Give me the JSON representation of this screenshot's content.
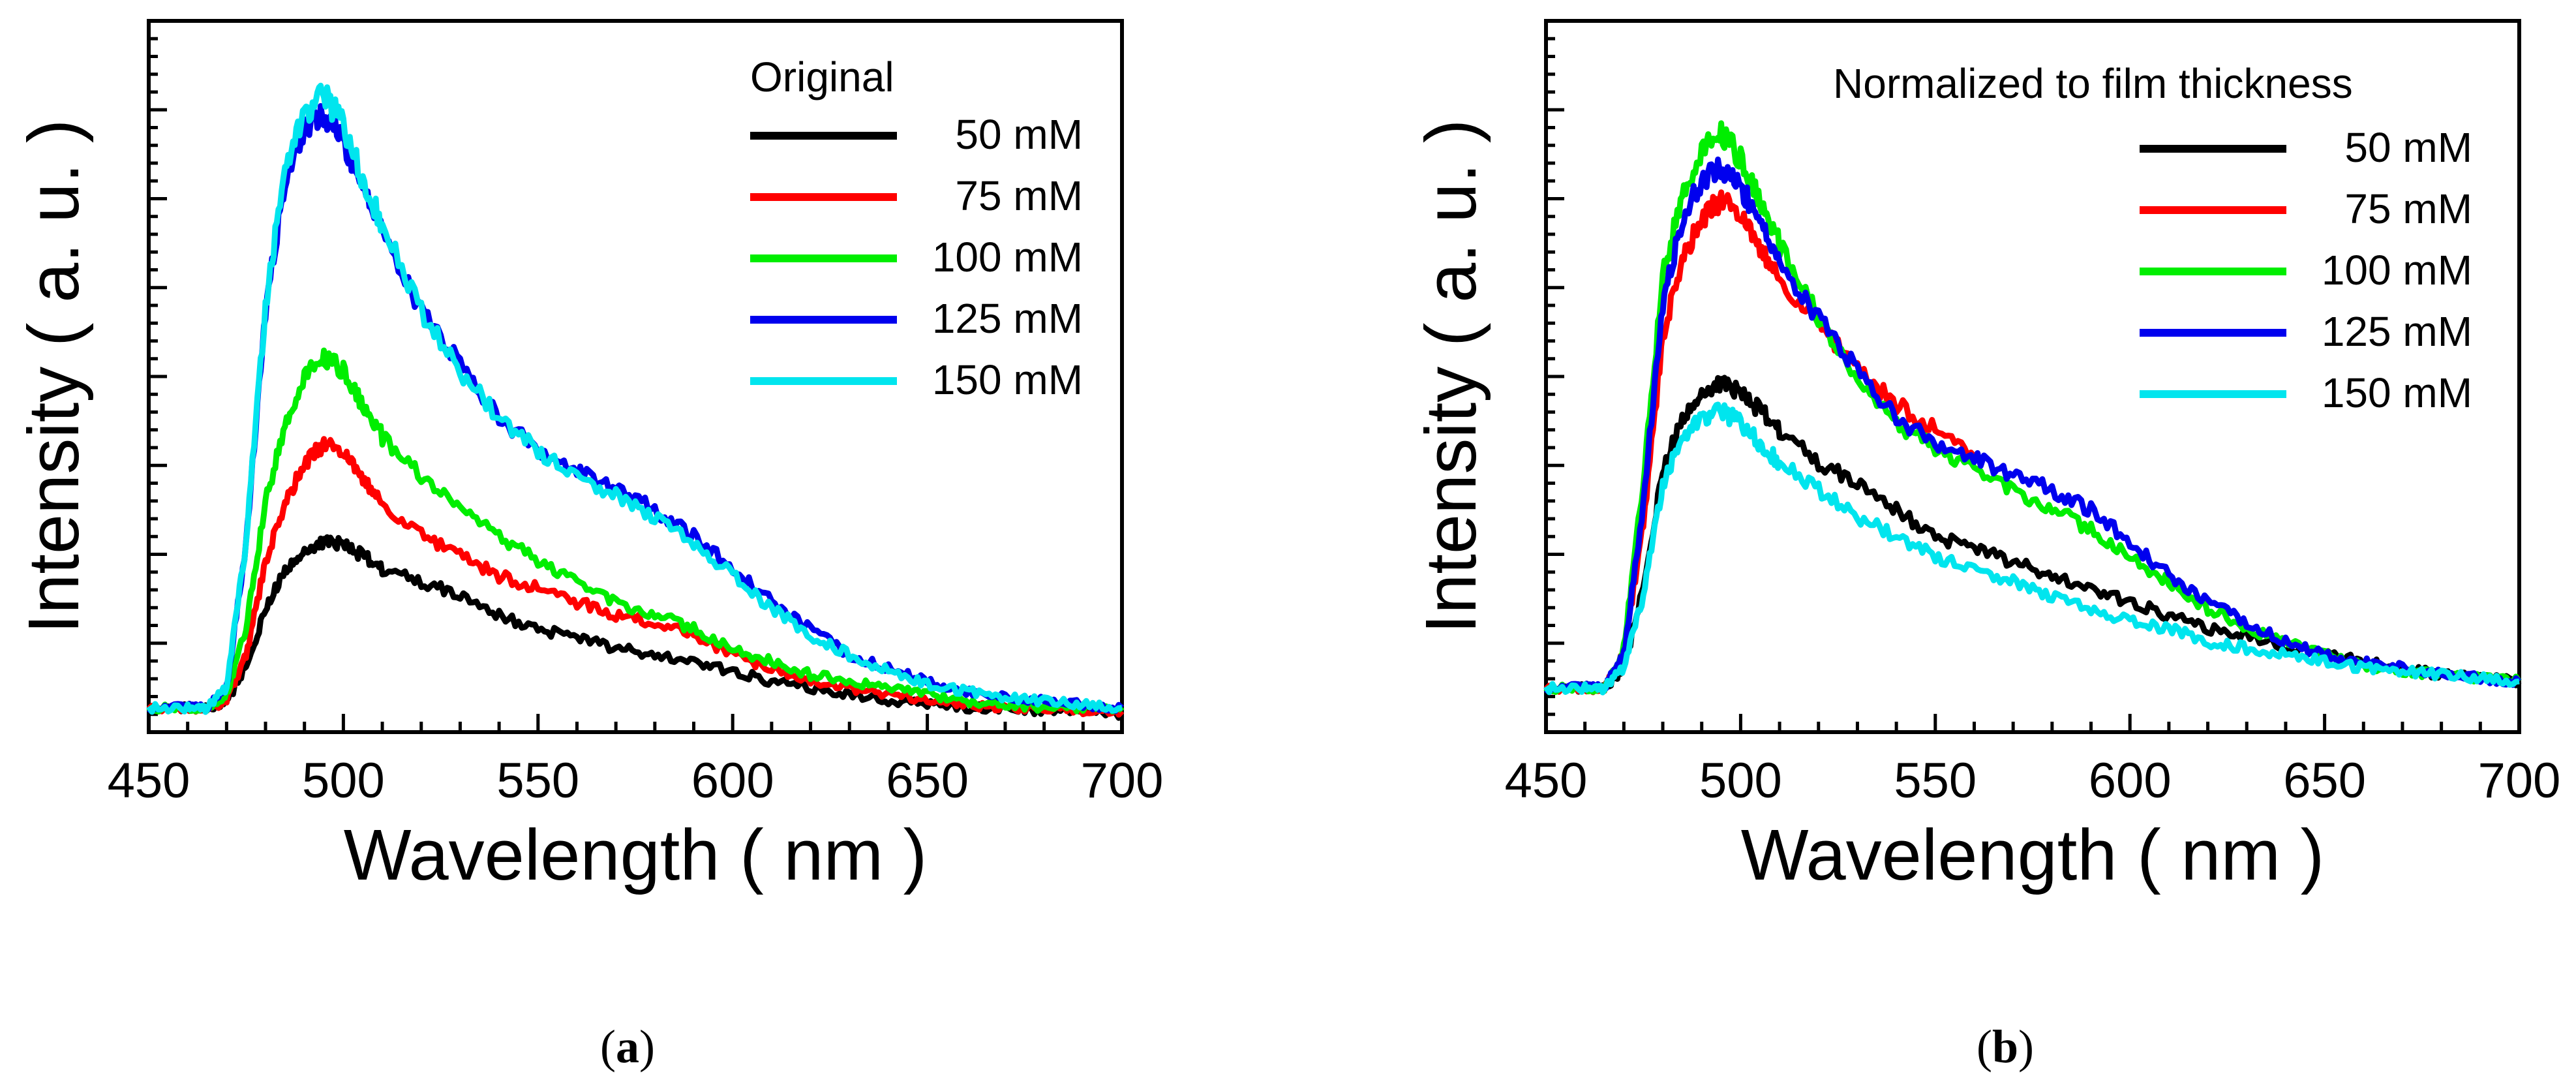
{
  "chart_data": [
    {
      "type": "line",
      "title": "Original",
      "xlabel": "Wavelength ( nm )",
      "ylabel": "Intensity ( a. u. )",
      "xlim": [
        450,
        700
      ],
      "ylim": [
        0,
        1.0
      ],
      "x_ticks": [
        "450",
        "500",
        "550",
        "600",
        "650",
        "700"
      ],
      "legend_title": "Original",
      "legend_position": "top-right",
      "caption": "a",
      "x": [
        450,
        460,
        465,
        470,
        475,
        480,
        485,
        490,
        495,
        500,
        505,
        510,
        520,
        530,
        540,
        550,
        560,
        570,
        580,
        590,
        600,
        610,
        620,
        630,
        640,
        650,
        660,
        670,
        680,
        690,
        700
      ],
      "series": [
        {
          "name": "50 mM",
          "color": "#000000",
          "values": [
            0.02,
            0.02,
            0.02,
            0.03,
            0.08,
            0.17,
            0.23,
            0.26,
            0.27,
            0.27,
            0.25,
            0.23,
            0.21,
            0.19,
            0.16,
            0.14,
            0.125,
            0.11,
            0.1,
            0.09,
            0.075,
            0.06,
            0.05,
            0.04,
            0.03,
            0.025,
            0.02,
            0.02,
            0.015,
            0.015,
            0.01
          ]
        },
        {
          "name": "75 mM",
          "color": "#ff0000",
          "values": [
            0.02,
            0.02,
            0.02,
            0.03,
            0.1,
            0.24,
            0.33,
            0.39,
            0.42,
            0.41,
            0.37,
            0.33,
            0.28,
            0.25,
            0.22,
            0.2,
            0.18,
            0.16,
            0.15,
            0.13,
            0.1,
            0.08,
            0.06,
            0.05,
            0.04,
            0.03,
            0.025,
            0.02,
            0.02,
            0.015,
            0.015
          ]
        },
        {
          "name": "100 mM",
          "color": "#00ee00",
          "values": [
            0.02,
            0.02,
            0.02,
            0.04,
            0.14,
            0.33,
            0.45,
            0.52,
            0.55,
            0.53,
            0.48,
            0.43,
            0.37,
            0.32,
            0.28,
            0.24,
            0.21,
            0.18,
            0.16,
            0.14,
            0.11,
            0.09,
            0.07,
            0.06,
            0.05,
            0.04,
            0.03,
            0.025,
            0.02,
            0.02,
            0.015
          ]
        },
        {
          "name": "125 mM",
          "color": "#0000ee",
          "values": [
            0.02,
            0.02,
            0.02,
            0.05,
            0.27,
            0.62,
            0.82,
            0.9,
            0.92,
            0.88,
            0.8,
            0.74,
            0.62,
            0.54,
            0.46,
            0.41,
            0.38,
            0.35,
            0.32,
            0.28,
            0.23,
            0.18,
            0.14,
            0.1,
            0.08,
            0.06,
            0.045,
            0.035,
            0.03,
            0.025,
            0.02
          ]
        },
        {
          "name": "150 mM",
          "color": "#00e5ee",
          "values": [
            0.02,
            0.02,
            0.02,
            0.05,
            0.27,
            0.63,
            0.84,
            0.92,
            0.95,
            0.9,
            0.82,
            0.75,
            0.62,
            0.53,
            0.46,
            0.41,
            0.37,
            0.34,
            0.31,
            0.27,
            0.22,
            0.17,
            0.13,
            0.1,
            0.075,
            0.055,
            0.045,
            0.035,
            0.03,
            0.025,
            0.02
          ]
        }
      ]
    },
    {
      "type": "line",
      "title": "Normalized to film thickness",
      "xlabel": "Wavelength ( nm )",
      "ylabel": "Intensity ( a. u. )",
      "xlim": [
        450,
        700
      ],
      "ylim": [
        0,
        1.0
      ],
      "x_ticks": [
        "450",
        "500",
        "550",
        "600",
        "650",
        "700"
      ],
      "legend_title": "Normalized to film thickness",
      "legend_position": "top-right",
      "caption": "b",
      "x": [
        450,
        460,
        465,
        470,
        475,
        480,
        485,
        490,
        495,
        500,
        505,
        510,
        520,
        530,
        540,
        550,
        560,
        570,
        580,
        590,
        600,
        610,
        620,
        630,
        640,
        650,
        660,
        670,
        680,
        690,
        700
      ],
      "series": [
        {
          "name": "50 mM",
          "color": "#000000",
          "values": [
            0.05,
            0.05,
            0.05,
            0.08,
            0.2,
            0.38,
            0.46,
            0.5,
            0.51,
            0.5,
            0.47,
            0.44,
            0.39,
            0.36,
            0.32,
            0.28,
            0.26,
            0.24,
            0.22,
            0.2,
            0.18,
            0.16,
            0.14,
            0.13,
            0.11,
            0.1,
            0.09,
            0.08,
            0.07,
            0.065,
            0.06
          ]
        },
        {
          "name": "75 mM",
          "color": "#ff0000",
          "values": [
            0.05,
            0.05,
            0.05,
            0.1,
            0.3,
            0.58,
            0.7,
            0.76,
            0.79,
            0.77,
            0.72,
            0.67,
            0.6,
            0.53,
            0.48,
            0.44,
            0.4,
            null,
            null,
            null,
            null,
            null,
            null,
            null,
            null,
            null,
            null,
            null,
            null,
            null,
            null
          ]
        },
        {
          "name": "100 mM",
          "color": "#00ee00",
          "values": [
            0.05,
            0.05,
            0.05,
            0.11,
            0.36,
            0.67,
            0.8,
            0.86,
            0.89,
            0.85,
            0.79,
            0.72,
            0.61,
            0.51,
            0.45,
            0.41,
            0.38,
            0.35,
            0.32,
            0.29,
            0.25,
            0.21,
            0.17,
            0.14,
            0.12,
            0.1,
            0.085,
            0.075,
            0.07,
            0.065,
            0.06
          ]
        },
        {
          "name": "125 mM",
          "color": "#0000ee",
          "values": [
            0.05,
            0.05,
            0.05,
            0.1,
            0.33,
            0.63,
            0.76,
            0.82,
            0.84,
            0.81,
            0.75,
            0.69,
            0.61,
            0.53,
            0.46,
            0.42,
            0.4,
            0.37,
            0.35,
            0.32,
            0.27,
            0.22,
            0.18,
            0.15,
            0.12,
            0.1,
            0.09,
            0.08,
            0.07,
            0.065,
            0.06
          ]
        },
        {
          "name": "150 mM",
          "color": "#00e5ee",
          "values": [
            0.05,
            0.05,
            0.05,
            0.08,
            0.19,
            0.36,
            0.43,
            0.46,
            0.47,
            0.45,
            0.42,
            0.39,
            0.35,
            0.31,
            0.28,
            0.25,
            0.23,
            0.21,
            0.19,
            0.17,
            0.15,
            0.14,
            0.12,
            0.11,
            0.1,
            0.09,
            0.08,
            0.075,
            0.07,
            0.065,
            0.06
          ]
        }
      ]
    }
  ]
}
